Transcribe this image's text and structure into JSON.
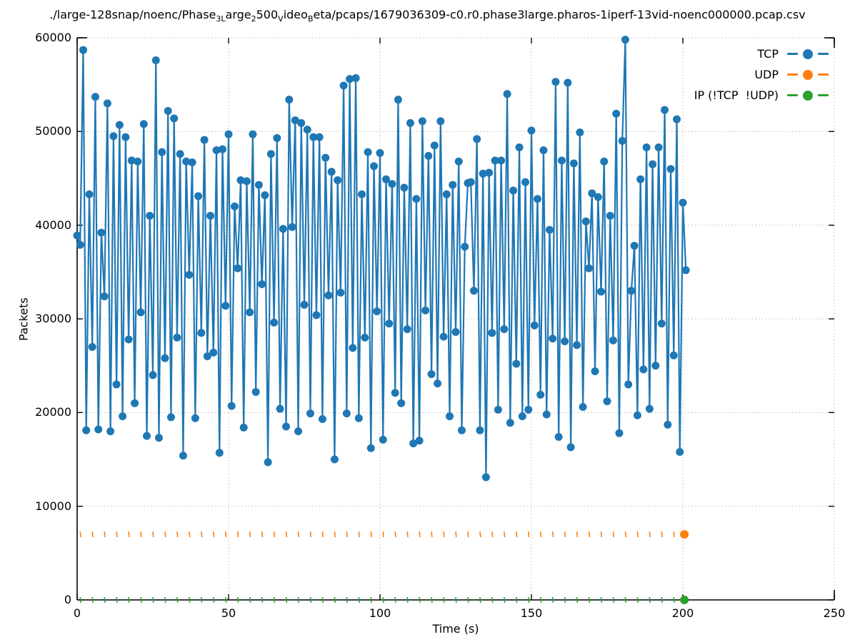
{
  "title": {
    "plain": "./large-128snap/noenc/Phase3Large2500VideoBeta/pcaps/1679036309-c0.r0.phase3large.pharos-1iperf-13vid-noenc000000.pcap.csv",
    "parts": [
      {
        "text": "./large-128snap/noenc/Phase",
        "sub": false
      },
      {
        "text": "3",
        "sub": true
      },
      {
        "text": "L",
        "sub": true
      },
      {
        "text": "arge",
        "sub": false
      },
      {
        "text": "2",
        "sub": true
      },
      {
        "text": "500",
        "sub": false
      },
      {
        "text": "V",
        "sub": true
      },
      {
        "text": "ideo",
        "sub": false
      },
      {
        "text": "B",
        "sub": true
      },
      {
        "text": "eta/pcaps/1679036309-c0.r0.phase3large.pharos-1iperf-13vid-noenc000000.pcap.csv",
        "sub": false
      }
    ]
  },
  "colors": {
    "tcp": "#1f77b4",
    "udp": "#ff7f0e",
    "ip_other": "#2ca02c",
    "grid": "#bbbbbb",
    "axis": "#000000",
    "text": "#000000",
    "background": "#ffffff"
  },
  "chart_data": {
    "type": "line",
    "title": "./large-128snap/noenc/Phase3Large2500VideoBeta/pcaps/1679036309-c0.r0.phase3large.pharos-1iperf-13vid-noenc000000.pcap.csv",
    "xlabel": "Time (s)",
    "ylabel": "Packets",
    "xlim": [
      0,
      250
    ],
    "ylim": [
      0,
      60000
    ],
    "x_ticks": [
      0,
      50,
      100,
      150,
      200,
      250
    ],
    "y_ticks": [
      0,
      10000,
      20000,
      30000,
      40000,
      50000,
      60000
    ],
    "grid": true,
    "legend_position": "top-right-inside",
    "series": [
      {
        "name": "TCP",
        "color": "#1f77b4",
        "style": "solid line with filled circle markers",
        "x_start": 0,
        "x_step": 1,
        "values": [
          38900,
          37900,
          58700,
          18100,
          43300,
          27000,
          53700,
          18200,
          39200,
          32400,
          53000,
          18000,
          49500,
          23000,
          50700,
          19600,
          49400,
          27800,
          46900,
          21000,
          46800,
          30700,
          50800,
          17500,
          41000,
          24000,
          57600,
          17300,
          47800,
          25800,
          52200,
          19500,
          51400,
          28000,
          47600,
          15400,
          46800,
          34700,
          46700,
          19400,
          43100,
          28500,
          49100,
          26000,
          41000,
          26400,
          48000,
          15700,
          48100,
          31400,
          49700,
          20700,
          42000,
          35400,
          44800,
          18400,
          44700,
          30700,
          49700,
          22200,
          44300,
          33700,
          43200,
          14700,
          47600,
          29600,
          49300,
          20400,
          39600,
          18500,
          53400,
          39800,
          51200,
          18000,
          50900,
          31500,
          50200,
          19900,
          49400,
          30400,
          49400,
          19300,
          47200,
          32500,
          45700,
          15000,
          44800,
          32800,
          54900,
          19900,
          55600,
          26900,
          55700,
          19400,
          43300,
          28000,
          47800,
          16200,
          46300,
          30800,
          47700,
          17100,
          44900,
          29500,
          44400,
          22100,
          53400,
          21000,
          44000,
          28900,
          50900,
          16700,
          42800,
          17000,
          51100,
          30900,
          47400,
          24100,
          48500,
          23100,
          51100,
          28100,
          43300,
          19600,
          44300,
          28600,
          46800,
          18100,
          37700,
          44500,
          44600,
          33000,
          49200,
          18100,
          45500,
          13100,
          45600,
          28500,
          46900,
          20300,
          46900,
          28900,
          54000,
          18900,
          43700,
          25200,
          48300,
          19600,
          44600,
          20300,
          50100,
          29300,
          42800,
          21900,
          48000,
          19800,
          39500,
          27900,
          55300,
          17400,
          46900,
          27600,
          55200,
          16300,
          46600,
          27200,
          49900,
          20600,
          40400,
          35400,
          43400,
          24400,
          43000,
          32900,
          46800,
          21200,
          41000,
          27700,
          51900,
          17800,
          49000,
          59800,
          23000,
          33000,
          37800,
          19700,
          44900,
          24600,
          48300,
          20400,
          46500,
          25000,
          48300,
          29500,
          52300,
          18700,
          46000,
          26100,
          51300,
          15800,
          42400,
          35200
        ]
      },
      {
        "name": "UDP",
        "color": "#ff7f0e",
        "style": "sparse dashes with end marker",
        "constant_value": 7000,
        "x_range": [
          0,
          201
        ],
        "dash_start": 1,
        "dash_interval_s": 4,
        "end_marker_x": 200.5
      },
      {
        "name": "IP (!TCP  !UDP)",
        "color": "#2ca02c",
        "style": "sparse dashes with end marker",
        "constant_value": 0,
        "x_range": [
          0,
          201
        ],
        "dash_start": 1,
        "dash_interval_s": 4,
        "end_marker_x": 200.5
      }
    ]
  }
}
